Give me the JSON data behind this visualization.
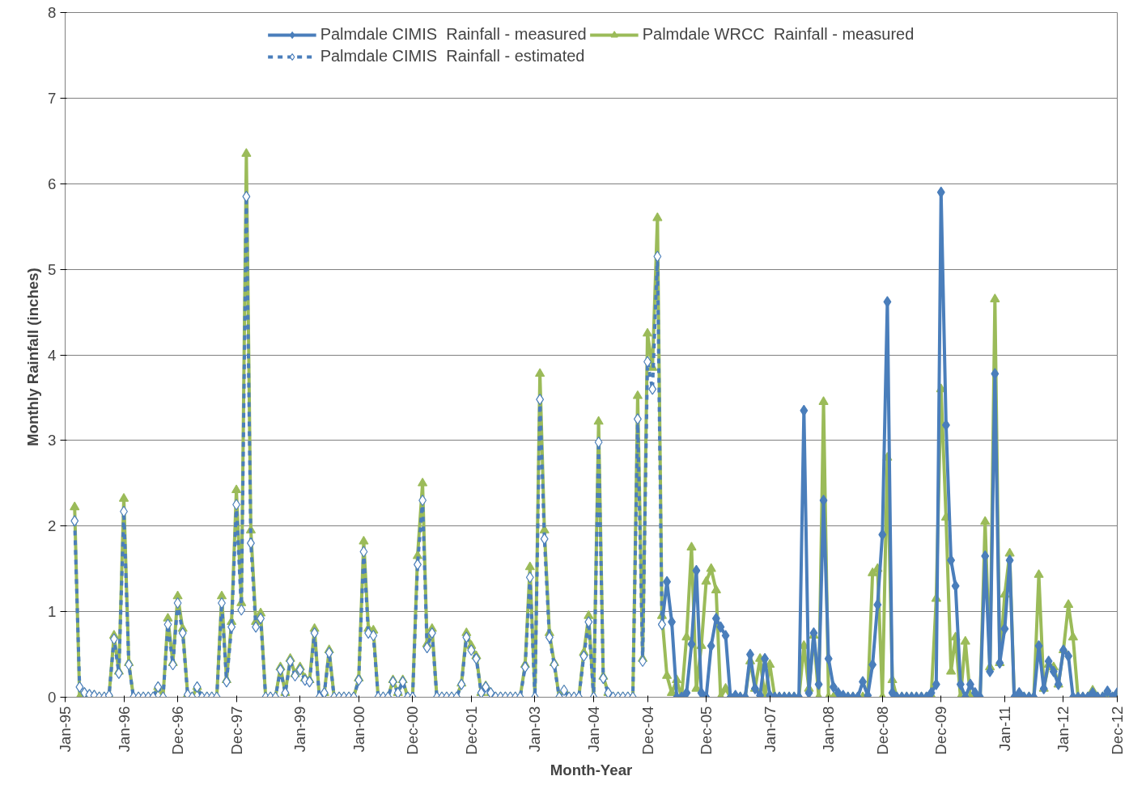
{
  "chart_data": {
    "type": "line",
    "xlabel": "Month-Year",
    "ylabel": "Monthly Rainfall  (inches)",
    "x": [
      "1995-03",
      "1995-04",
      "1995-05",
      "1995-06",
      "1995-07",
      "1995-08",
      "1995-09",
      "1995-10",
      "1995-11",
      "1995-12",
      "1996-01",
      "1996-02",
      "1996-03",
      "1996-04",
      "1996-05",
      "1996-06",
      "1996-07",
      "1996-08",
      "1996-09",
      "1996-10",
      "1996-11",
      "1996-12",
      "1997-01",
      "1997-02",
      "1997-03",
      "1997-04",
      "1997-05",
      "1997-06",
      "1997-07",
      "1997-08",
      "1997-09",
      "1997-10",
      "1997-11",
      "1997-12",
      "1998-01",
      "1998-02",
      "1998-03",
      "1998-04",
      "1998-05",
      "1998-06",
      "1998-07",
      "1998-08",
      "1998-09",
      "1998-10",
      "1998-11",
      "1998-12",
      "1999-01",
      "1999-02",
      "1999-03",
      "1999-04",
      "1999-05",
      "1999-06",
      "1999-07",
      "1999-08",
      "1999-09",
      "1999-10",
      "1999-11",
      "1999-12",
      "2000-01",
      "2000-02",
      "2000-03",
      "2000-04",
      "2000-05",
      "2000-06",
      "2000-07",
      "2000-08",
      "2000-09",
      "2000-10",
      "2000-11",
      "2000-12",
      "2001-01",
      "2001-02",
      "2001-03",
      "2001-04",
      "2001-05",
      "2001-06",
      "2001-07",
      "2001-08",
      "2001-09",
      "2001-10",
      "2001-11",
      "2001-12",
      "2002-01",
      "2002-02",
      "2002-03",
      "2002-04",
      "2002-05",
      "2002-06",
      "2002-07",
      "2002-08",
      "2002-09",
      "2002-10",
      "2002-11",
      "2002-12",
      "2003-01",
      "2003-02",
      "2003-03",
      "2003-04",
      "2003-05",
      "2003-06",
      "2003-07",
      "2003-08",
      "2003-09",
      "2003-10",
      "2003-11",
      "2003-12",
      "2004-01",
      "2004-02",
      "2004-03",
      "2004-04",
      "2004-05",
      "2004-06",
      "2004-07",
      "2004-08",
      "2004-09",
      "2004-10",
      "2004-11",
      "2004-12",
      "2005-01",
      "2005-02",
      "2005-03",
      "2005-04",
      "2005-05",
      "2005-06",
      "2005-07",
      "2005-08",
      "2005-09",
      "2005-10",
      "2005-11",
      "2005-12",
      "2006-01",
      "2006-02",
      "2006-03",
      "2006-04",
      "2006-05",
      "2006-06",
      "2006-07",
      "2006-08",
      "2006-09",
      "2006-10",
      "2006-11",
      "2006-12",
      "2007-01",
      "2007-02",
      "2007-03",
      "2007-04",
      "2007-05",
      "2007-06",
      "2007-07",
      "2007-08",
      "2007-09",
      "2007-10",
      "2007-11",
      "2007-12",
      "2008-01",
      "2008-02",
      "2008-03",
      "2008-04",
      "2008-05",
      "2008-06",
      "2008-07",
      "2008-08",
      "2008-09",
      "2008-10",
      "2008-11",
      "2008-12",
      "2009-01",
      "2009-02",
      "2009-03",
      "2009-04",
      "2009-05",
      "2009-06",
      "2009-07",
      "2009-08",
      "2009-09",
      "2009-10",
      "2009-11",
      "2009-12",
      "2010-01",
      "2010-02",
      "2010-03",
      "2010-04",
      "2010-05",
      "2010-06",
      "2010-07",
      "2010-08",
      "2010-09",
      "2010-10",
      "2010-11",
      "2010-12",
      "2011-01",
      "2011-02",
      "2011-03",
      "2011-04",
      "2011-05",
      "2011-06",
      "2011-07",
      "2011-08",
      "2011-09",
      "2011-10",
      "2011-11",
      "2011-12",
      "2012-01",
      "2012-02",
      "2012-03",
      "2012-04",
      "2012-05",
      "2012-06",
      "2012-07",
      "2012-08",
      "2012-09",
      "2012-10",
      "2012-11",
      "2012-12"
    ],
    "series": [
      {
        "name": "Palmdale CIMIS  Rainfall - measured",
        "color": "#4a7ebb",
        "marker": "diamond",
        "line_style": "solid",
        "values": [
          null,
          null,
          null,
          null,
          null,
          null,
          null,
          null,
          null,
          null,
          null,
          null,
          null,
          null,
          null,
          null,
          null,
          null,
          null,
          null,
          null,
          null,
          null,
          null,
          null,
          null,
          null,
          null,
          null,
          null,
          null,
          null,
          null,
          null,
          null,
          null,
          null,
          null,
          null,
          null,
          null,
          null,
          null,
          null,
          null,
          null,
          null,
          null,
          null,
          null,
          null,
          null,
          null,
          null,
          null,
          null,
          null,
          null,
          null,
          null,
          null,
          null,
          null,
          null,
          null,
          null,
          null,
          null,
          null,
          null,
          null,
          null,
          null,
          null,
          null,
          null,
          null,
          null,
          null,
          null,
          null,
          null,
          null,
          null,
          null,
          null,
          null,
          null,
          null,
          null,
          null,
          null,
          null,
          null,
          null,
          null,
          null,
          null,
          null,
          null,
          null,
          null,
          null,
          null,
          null,
          null,
          null,
          null,
          null,
          null,
          null,
          null,
          null,
          null,
          null,
          null,
          null,
          null,
          null,
          null,
          0.85,
          1.35,
          0.88,
          0,
          0,
          0.05,
          0.62,
          1.48,
          0.05,
          0,
          0.6,
          0.92,
          0.82,
          0.72,
          0,
          0.02,
          0,
          0,
          0.5,
          0.1,
          0.02,
          0.45,
          0.02,
          0,
          0,
          0,
          0,
          0,
          0,
          3.35,
          0.05,
          0.75,
          0.15,
          2.3,
          0.45,
          0.12,
          0.05,
          0.02,
          0,
          0,
          0,
          0.18,
          0.02,
          0.38,
          1.08,
          1.9,
          4.62,
          0.05,
          0,
          0,
          0,
          0,
          0,
          0,
          0,
          0.05,
          0.15,
          5.9,
          3.18,
          1.6,
          1.3,
          0.15,
          0,
          0.15,
          0.05,
          0,
          1.65,
          0.3,
          3.78,
          0.4,
          0.8,
          1.6,
          0,
          0.05,
          0,
          0,
          0,
          0.6,
          0.1,
          0.42,
          0.3,
          0.15,
          0.55,
          0.48,
          0,
          0,
          0,
          0,
          0.05,
          0,
          0,
          0.07,
          0,
          0.05
        ]
      },
      {
        "name": "Palmdale WRCC  Rainfall - measured",
        "color": "#9bbb59",
        "marker": "triangle",
        "line_style": "solid",
        "values": [
          2.22,
          0,
          0.05,
          0.03,
          0.02,
          0,
          0,
          0.02,
          0.72,
          0.3,
          2.32,
          0.4,
          0,
          0,
          0,
          0,
          0,
          0.12,
          0,
          0.92,
          0.4,
          1.18,
          0.8,
          0.03,
          0,
          0.12,
          0,
          0,
          0,
          0,
          1.18,
          0.2,
          0.88,
          2.42,
          1.1,
          6.35,
          1.95,
          0.88,
          0.98,
          0,
          0,
          0,
          0.35,
          0.05,
          0.45,
          0.27,
          0.35,
          0.22,
          0.2,
          0.8,
          0,
          0.05,
          0.55,
          0,
          0,
          0,
          0,
          0,
          0.22,
          1.82,
          0.8,
          0.78,
          0,
          0,
          0,
          0.2,
          0.05,
          0.2,
          0,
          0,
          1.65,
          2.5,
          0.62,
          0.8,
          0,
          0,
          0,
          0,
          0,
          0.16,
          0.75,
          0.6,
          0.48,
          0.05,
          0.13,
          0.05,
          0,
          0,
          0,
          0,
          0,
          0,
          0.38,
          1.52,
          0,
          3.78,
          1.95,
          0.75,
          0.4,
          0,
          0.08,
          0,
          0,
          0,
          0.52,
          0.95,
          0,
          3.22,
          0.24,
          0.05,
          0,
          0,
          0,
          0,
          0,
          3.52,
          0.45,
          4.25,
          3.85,
          5.6,
          0.95,
          0.25,
          0.05,
          0.2,
          0,
          0.7,
          1.75,
          0.1,
          0.6,
          1.35,
          1.5,
          1.25,
          0,
          0.1,
          0,
          0,
          0,
          0,
          0.42,
          0.1,
          0.45,
          0,
          0.38,
          0,
          0,
          0,
          0,
          0,
          0,
          0.6,
          0.1,
          0.72,
          0,
          3.45,
          0,
          0,
          0,
          0,
          0,
          0,
          0,
          0,
          0,
          1.45,
          1.5,
          0,
          2.8,
          0.2,
          0,
          0,
          0,
          0,
          0,
          0,
          0,
          0.02,
          1.15,
          3.6,
          2.1,
          0.3,
          0.7,
          0,
          0.65,
          0,
          0,
          0,
          2.05,
          0.35,
          4.65,
          0.4,
          1.2,
          1.68,
          0,
          0,
          0,
          0,
          0,
          1.43,
          0.1,
          0.38,
          0.35,
          0.15,
          0.55,
          1.08,
          0.7,
          0,
          0,
          0,
          0.08,
          0,
          0,
          0,
          0,
          0
        ]
      },
      {
        "name": "Palmdale CIMIS  Rainfall - estimated",
        "color": "#4a7ebb",
        "marker": "diamond",
        "line_style": "dashed",
        "values": [
          2.06,
          0.12,
          0.05,
          0.03,
          0.02,
          0,
          0,
          0.02,
          0.68,
          0.28,
          2.17,
          0.38,
          0,
          0,
          0,
          0,
          0,
          0.12,
          0,
          0.85,
          0.38,
          1.1,
          0.75,
          0.03,
          0,
          0.12,
          0,
          0,
          0,
          0,
          1.1,
          0.18,
          0.82,
          2.25,
          1.02,
          5.85,
          1.8,
          0.82,
          0.92,
          0,
          0,
          0,
          0.32,
          0.05,
          0.42,
          0.25,
          0.32,
          0.2,
          0.18,
          0.75,
          0,
          0.05,
          0.52,
          0,
          0,
          0,
          0,
          0,
          0.2,
          1.7,
          0.75,
          0.72,
          0,
          0,
          0,
          0.18,
          0.05,
          0.18,
          0,
          0,
          1.55,
          2.3,
          0.58,
          0.75,
          0,
          0,
          0,
          0,
          0,
          0.15,
          0.7,
          0.55,
          0.45,
          0.05,
          0.12,
          0.05,
          0,
          0,
          0,
          0,
          0,
          0,
          0.35,
          1.4,
          0,
          3.48,
          1.85,
          0.7,
          0.38,
          0,
          0.08,
          0,
          0,
          0,
          0.48,
          0.88,
          0,
          2.98,
          0.22,
          0.05,
          0,
          0,
          0,
          0,
          0,
          3.25,
          0.42,
          3.92,
          3.6,
          5.15,
          0.85,
          null,
          null,
          null,
          null,
          null,
          null,
          null,
          null,
          null,
          null,
          null,
          null,
          null,
          null,
          null,
          null,
          null,
          null,
          null,
          null,
          null,
          null,
          null,
          null,
          null,
          null,
          null,
          null,
          null,
          null,
          null,
          null,
          null,
          null,
          null,
          null,
          null,
          null,
          null,
          null,
          null,
          null,
          null,
          null,
          null,
          null,
          null,
          null,
          null,
          null,
          null,
          null,
          null,
          null,
          null,
          null,
          null,
          null,
          null,
          null,
          null,
          null,
          null,
          null,
          null,
          null,
          null,
          null,
          null,
          null,
          null,
          null,
          null,
          null,
          null,
          null,
          null,
          null,
          null,
          null,
          null,
          null,
          null,
          null,
          null,
          null,
          null,
          null,
          null,
          null,
          null,
          null,
          null
        ]
      }
    ],
    "xlim": [
      "1995-01",
      "2012-12"
    ],
    "xticks": [
      {
        "value": "1995-01",
        "label": "Jan-95"
      },
      {
        "value": "1996-01",
        "label": "Jan-96"
      },
      {
        "value": "1996-12",
        "label": "Dec-96"
      },
      {
        "value": "1997-12",
        "label": "Dec-97"
      },
      {
        "value": "1999-01",
        "label": "Jan-99"
      },
      {
        "value": "2000-01",
        "label": "Jan-00"
      },
      {
        "value": "2000-12",
        "label": "Dec-00"
      },
      {
        "value": "2001-12",
        "label": "Dec-01"
      },
      {
        "value": "2003-01",
        "label": "Jan-03"
      },
      {
        "value": "2004-01",
        "label": "Jan-04"
      },
      {
        "value": "2004-12",
        "label": "Dec-04"
      },
      {
        "value": "2005-12",
        "label": "Dec-05"
      },
      {
        "value": "2007-01",
        "label": "Jan-07"
      },
      {
        "value": "2008-01",
        "label": "Jan-08"
      },
      {
        "value": "2008-12",
        "label": "Dec-08"
      },
      {
        "value": "2009-12",
        "label": "Dec-09"
      },
      {
        "value": "2011-01",
        "label": "Jan-11"
      },
      {
        "value": "2012-01",
        "label": "Jan-12"
      },
      {
        "value": "2012-12",
        "label": "Dec-12"
      }
    ],
    "ylim": [
      0,
      8
    ],
    "yticks": [
      0,
      1,
      2,
      3,
      4,
      5,
      6,
      7,
      8
    ],
    "grid": "y",
    "legend": "top"
  }
}
